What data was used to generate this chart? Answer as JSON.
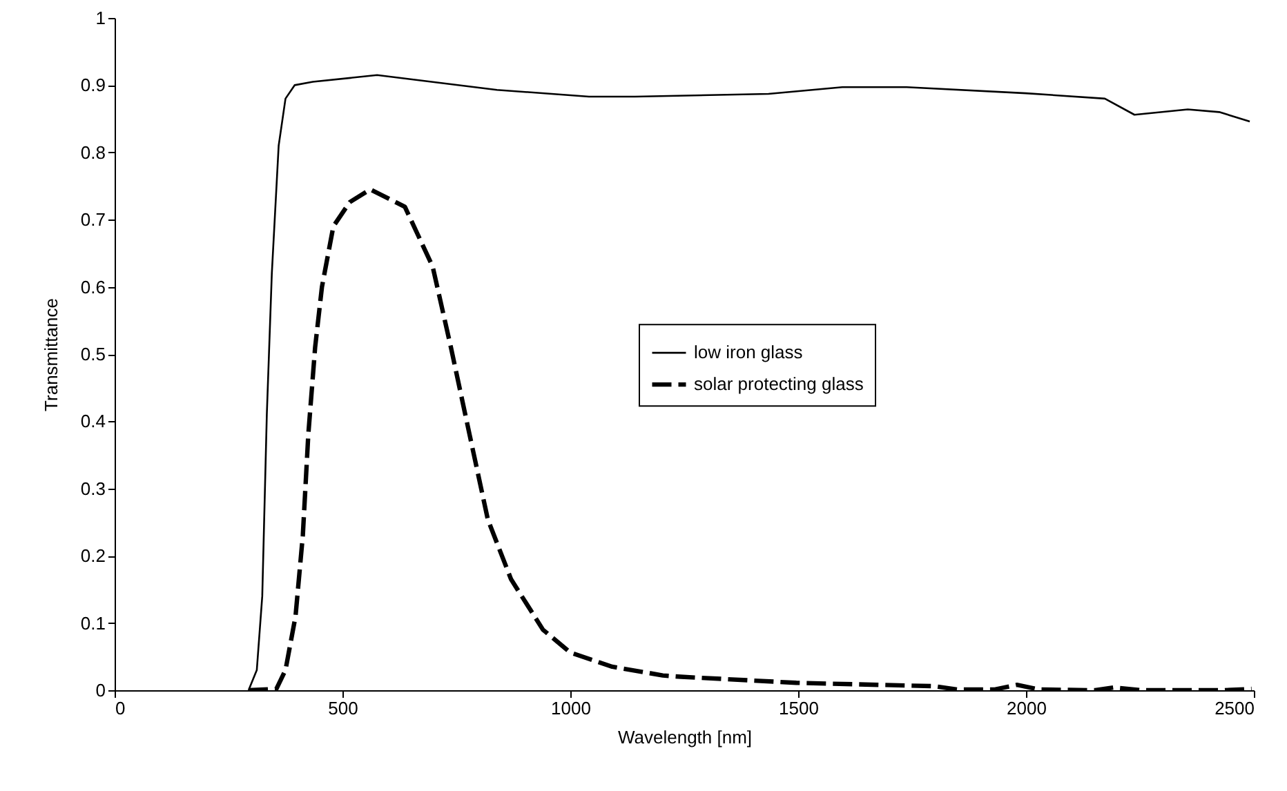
{
  "chart_data": {
    "type": "line",
    "xlabel": "Wavelength [nm]",
    "ylabel": "Transmittance",
    "xlim": [
      0,
      2500
    ],
    "ylim": [
      0,
      1
    ],
    "xticks": [
      0,
      500,
      1000,
      1500,
      2000,
      2500
    ],
    "yticks": [
      0,
      0.1,
      0.2,
      0.3,
      0.4,
      0.5,
      0.6,
      0.7,
      0.8,
      0.9,
      1
    ],
    "grid": false,
    "legend": "right",
    "series": [
      {
        "name": "low iron glass",
        "color": "#000000",
        "line_style": "solid",
        "x": [
          294,
          312,
          324,
          334,
          345,
          360,
          375,
          395,
          435,
          576,
          839,
          1041,
          1142,
          1435,
          1597,
          1738,
          2000,
          2173,
          2238,
          2355,
          2424,
          2491
        ],
        "values": [
          0,
          0.03,
          0.14,
          0.41,
          0.62,
          0.81,
          0.88,
          0.9,
          0.905,
          0.915,
          0.893,
          0.883,
          0.883,
          0.887,
          0.897,
          0.897,
          0.888,
          0.88,
          0.856,
          0.864,
          0.86,
          0.846
        ]
      },
      {
        "name": "solar protecting glass",
        "color": "#000000",
        "line_style": "dashed",
        "x": [
          294,
          355,
          375,
          397,
          413,
          425,
          440,
          455,
          480,
          516,
          561,
          637,
          698,
          738,
          779,
          819,
          870,
          940,
          1000,
          1092,
          1203,
          1243,
          1496,
          1799,
          1850,
          1930,
          1980,
          2030,
          2152,
          2192,
          2253,
          2435,
          2495
        ],
        "values": [
          0,
          0.002,
          0.03,
          0.11,
          0.23,
          0.38,
          0.51,
          0.6,
          0.69,
          0.726,
          0.745,
          0.719,
          0.63,
          0.51,
          0.38,
          0.254,
          0.165,
          0.09,
          0.056,
          0.035,
          0.022,
          0.02,
          0.011,
          0.006,
          0.001,
          0.001,
          0.008,
          0.001,
          0,
          0.004,
          0,
          0,
          0.002
        ]
      }
    ]
  }
}
